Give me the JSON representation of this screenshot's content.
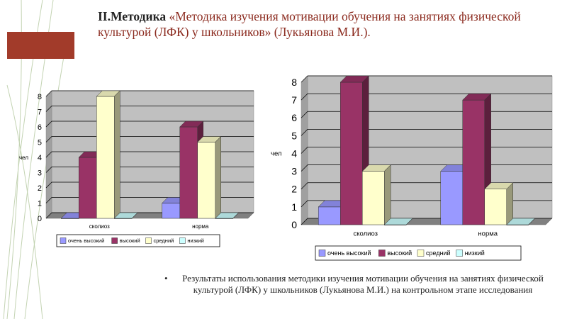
{
  "slide": {
    "title_bold": "II.Методика",
    "title_rest": " «Методика изучения мотивации обучения на занятиях физической культурой (ЛФК) у школьников» (Лукьянова М.И.).",
    "caption": "Результаты использования методики изучения мотивации обучения на занятиях физической культурой (ЛФК) у школьников (Лукьянова М.И.) на контрольном этапе исследования",
    "bullet": "•"
  },
  "colors": {
    "accent": "#a23b2a",
    "series": [
      "#9999ff",
      "#993366",
      "#ffffcc",
      "#ccffff"
    ],
    "wall": "#c0c0c0"
  },
  "chart_data": [
    {
      "type": "bar",
      "ylabel": "чел",
      "categories": [
        "сколиоз",
        "норма"
      ],
      "ylim": [
        0,
        8
      ],
      "yticks": [
        0,
        1,
        2,
        3,
        4,
        5,
        6,
        7,
        8
      ],
      "series": [
        {
          "name": "очень высокий",
          "values": [
            0,
            1
          ]
        },
        {
          "name": "высокий",
          "values": [
            4,
            6
          ]
        },
        {
          "name": "средний",
          "values": [
            8,
            5
          ]
        },
        {
          "name": "низкий",
          "values": [
            0,
            0
          ]
        }
      ],
      "legend": "bottom",
      "grid": true
    },
    {
      "type": "bar",
      "ylabel": "чел",
      "categories": [
        "сколиоз",
        "норма"
      ],
      "ylim": [
        0,
        8
      ],
      "yticks": [
        0,
        1,
        2,
        3,
        4,
        5,
        6,
        7,
        8
      ],
      "series": [
        {
          "name": "очень высокий",
          "values": [
            1,
            3
          ]
        },
        {
          "name": "высокий",
          "values": [
            8,
            7
          ]
        },
        {
          "name": "средний",
          "values": [
            3,
            2
          ]
        },
        {
          "name": "низкий",
          "values": [
            0,
            0
          ]
        }
      ],
      "legend": "bottom",
      "grid": true
    }
  ]
}
